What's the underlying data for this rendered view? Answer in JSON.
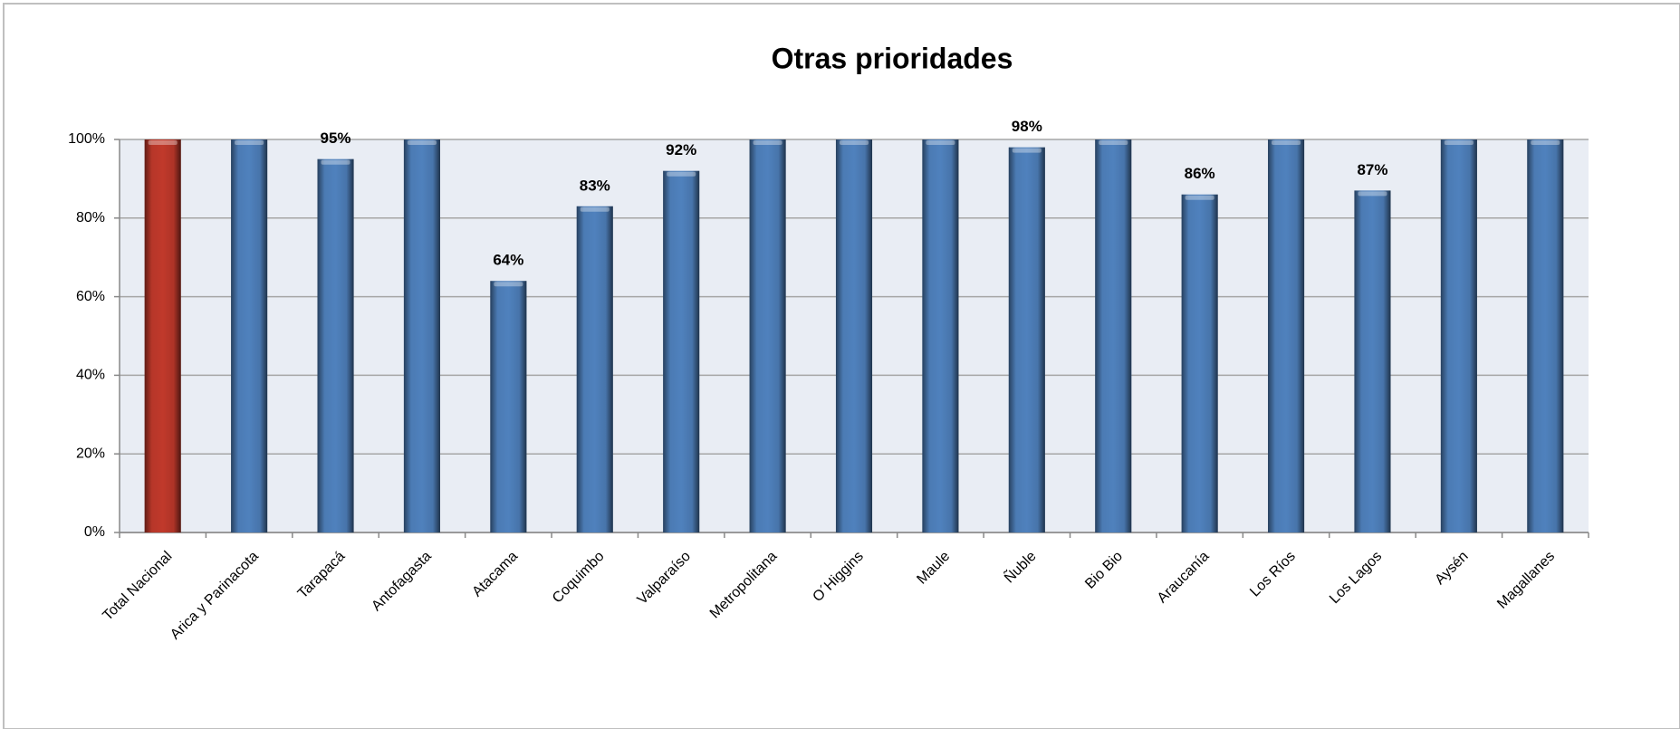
{
  "chart_data": {
    "type": "bar",
    "title": "Otras prioridades",
    "categories": [
      "Total Nacional",
      "Arica y Parinacota",
      "Tarapacá",
      "Antofagasta",
      "Atacama",
      "Coquimbo",
      "Valparaíso",
      "Metropolitana",
      "O´Higgins",
      "Maule",
      "Ñuble",
      "Bio Bio",
      "Araucanía",
      "Los Ríos",
      "Los Lagos",
      "Aysén",
      "Magallanes"
    ],
    "values": [
      100,
      100,
      95,
      100,
      64,
      83,
      92,
      100,
      100,
      100,
      98,
      100,
      86,
      100,
      87,
      100,
      100
    ],
    "value_labels": [
      null,
      null,
      "95%",
      null,
      "64%",
      "83%",
      "92%",
      null,
      null,
      null,
      "98%",
      null,
      "86%",
      null,
      "87%",
      null,
      null
    ],
    "colors": [
      "#c0392b",
      "#4f81bd",
      "#4f81bd",
      "#4f81bd",
      "#4f81bd",
      "#4f81bd",
      "#4f81bd",
      "#4f81bd",
      "#4f81bd",
      "#4f81bd",
      "#4f81bd",
      "#4f81bd",
      "#4f81bd",
      "#4f81bd",
      "#4f81bd",
      "#4f81bd",
      "#4f81bd"
    ],
    "ylim": [
      0,
      100
    ],
    "yticks": [
      {
        "value": 0,
        "label": "0%"
      },
      {
        "value": 20,
        "label": "20%"
      },
      {
        "value": 40,
        "label": "40%"
      },
      {
        "value": 60,
        "label": "60%"
      },
      {
        "value": 80,
        "label": "80%"
      },
      {
        "value": 100,
        "label": "100%"
      }
    ],
    "grid": true
  }
}
